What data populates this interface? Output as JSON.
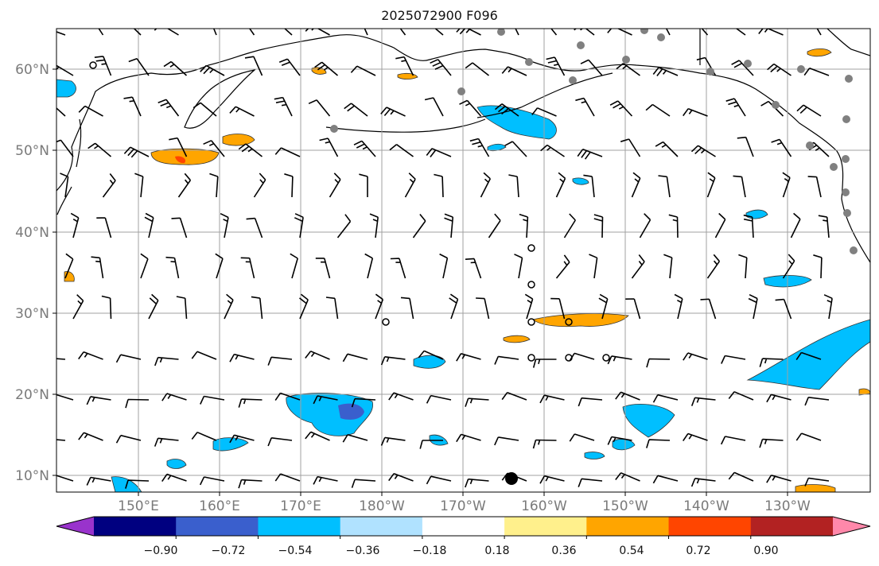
{
  "title": "2025072900 F096",
  "lat_labels": [
    "60°N",
    "50°N",
    "40°N",
    "30°N",
    "20°N",
    "10°N"
  ],
  "lon_labels": [
    "150°E",
    "160°E",
    "170°E",
    "180°W",
    "170°W",
    "160°W",
    "150°W",
    "140°W",
    "130°W"
  ],
  "colorbar": {
    "colors": [
      "#9933cc",
      "#000080",
      "#3a5fcd",
      "#00bfff",
      "#b0e2ff",
      "#ffffff",
      "#fff08c",
      "#ffa500",
      "#ff4500",
      "#b22222",
      "#ff88aa"
    ],
    "labels": [
      "−0.90",
      "−0.72",
      "−0.54",
      "−0.36",
      "−0.18",
      "0.18",
      "0.36",
      "0.54",
      "0.72",
      "0.90"
    ]
  }
}
